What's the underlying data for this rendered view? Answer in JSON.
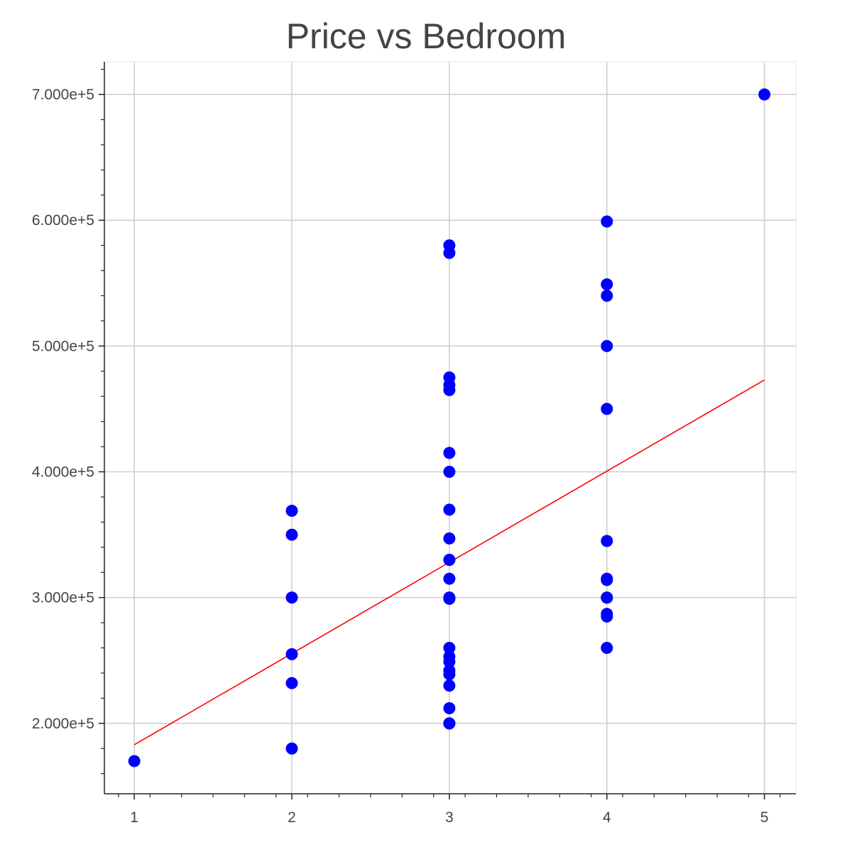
{
  "chart_data": {
    "type": "scatter",
    "title": "Price vs Bedroom",
    "xlabel": "",
    "ylabel": "",
    "xlim": [
      0.81,
      5.2
    ],
    "ylim": [
      144000,
      726000
    ],
    "grid": true,
    "x_ticks": [
      1,
      2,
      3,
      4,
      5
    ],
    "x_tick_labels": [
      "1",
      "2",
      "3",
      "4",
      "5"
    ],
    "y_ticks": [
      200000,
      300000,
      400000,
      500000,
      600000,
      700000
    ],
    "y_tick_labels": [
      "2.000e+5",
      "3.000e+5",
      "4.000e+5",
      "5.000e+5",
      "6.000e+5",
      "7.000e+5"
    ],
    "point_color": "#0000ff",
    "line_color": "#ff0000",
    "series": [
      {
        "type": "scatter",
        "x": [
          1,
          2,
          2,
          2,
          2,
          2,
          2,
          3,
          3,
          3,
          3,
          3,
          3,
          3,
          3,
          3,
          3,
          3,
          3,
          3,
          3,
          3,
          3,
          3,
          3,
          3,
          3,
          3,
          3,
          3,
          4,
          4,
          4,
          4,
          4,
          4,
          4,
          4,
          4,
          4,
          4,
          4,
          4,
          5
        ],
        "y": [
          170000,
          369000,
          350000,
          300000,
          255000,
          232000,
          180000,
          580000,
          574000,
          475000,
          469000,
          465000,
          400000,
          369900,
          347000,
          330000,
          315000,
          300000,
          299000,
          260000,
          253000,
          249000,
          242000,
          239000,
          230000,
          212000,
          200000,
          199900,
          330000,
          415000,
          599000,
          549000,
          540000,
          500000,
          450000,
          345000,
          315000,
          314000,
          300000,
          299900,
          287000,
          285000,
          260000,
          700000
        ]
      },
      {
        "type": "line",
        "x": [
          1,
          5
        ],
        "y": [
          183000,
          473000
        ]
      }
    ]
  }
}
